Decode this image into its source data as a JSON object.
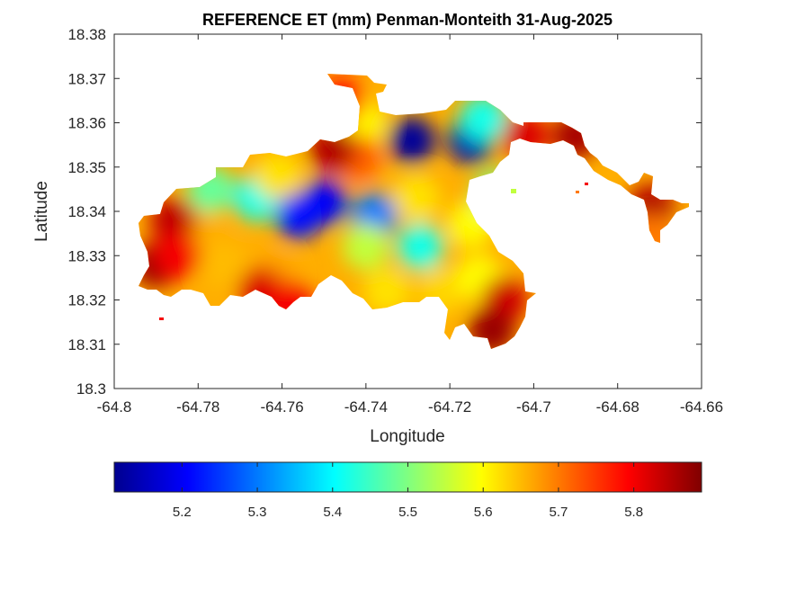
{
  "title": "REFERENCE ET (mm) Penman-Monteith 31-Aug-2025",
  "axes": {
    "xlabel": "Longitude",
    "ylabel": "Latitude",
    "xlim": [
      -64.8,
      -64.66
    ],
    "ylim": [
      18.3,
      18.38
    ],
    "xticks": [
      "-64.8",
      "-64.78",
      "-64.76",
      "-64.74",
      "-64.72",
      "-64.7",
      "-64.68",
      "-64.66"
    ],
    "yticks": [
      "18.3",
      "18.31",
      "18.32",
      "18.33",
      "18.34",
      "18.35",
      "18.36",
      "18.37",
      "18.38"
    ]
  },
  "colorbar": {
    "colormap": "jet",
    "range": [
      5.11,
      5.89
    ],
    "ticks": [
      "5.2",
      "5.3",
      "5.4",
      "5.5",
      "5.6",
      "5.7",
      "5.8"
    ],
    "stops": [
      "#00008f",
      "#0000ff",
      "#0080ff",
      "#00ffff",
      "#80ff80",
      "#ffff00",
      "#ff8000",
      "#ff0000",
      "#800000"
    ]
  },
  "chart_data": {
    "type": "heatmap",
    "title": "REFERENCE ET (mm) Penman-Monteith 31-Aug-2025",
    "xlabel": "Longitude",
    "ylabel": "Latitude",
    "xlim": [
      -64.8,
      -64.66
    ],
    "ylim": [
      18.3,
      18.38
    ],
    "value_range": [
      5.11,
      5.89
    ],
    "grid": false,
    "hotspots": [
      {
        "lon": -64.729,
        "lat": 18.356,
        "value": 5.12
      },
      {
        "lon": -64.715,
        "lat": 18.356,
        "value": 5.14
      },
      {
        "lon": -64.75,
        "lat": 18.342,
        "value": 5.2
      },
      {
        "lon": -64.756,
        "lat": 18.339,
        "value": 5.22
      },
      {
        "lon": -64.738,
        "lat": 18.339,
        "value": 5.3
      },
      {
        "lon": -64.712,
        "lat": 18.361,
        "value": 5.42
      },
      {
        "lon": -64.766,
        "lat": 18.343,
        "value": 5.42
      },
      {
        "lon": -64.727,
        "lat": 18.332,
        "value": 5.42
      },
      {
        "lon": -64.777,
        "lat": 18.345,
        "value": 5.48
      },
      {
        "lon": -64.728,
        "lat": 18.343,
        "value": 5.62
      },
      {
        "lon": -64.78,
        "lat": 18.335,
        "value": 5.66
      },
      {
        "lon": -64.774,
        "lat": 18.328,
        "value": 5.65
      },
      {
        "lon": -64.762,
        "lat": 18.325,
        "value": 5.67
      },
      {
        "lon": -64.74,
        "lat": 18.332,
        "value": 5.55
      },
      {
        "lon": -64.735,
        "lat": 18.322,
        "value": 5.62
      },
      {
        "lon": -64.722,
        "lat": 18.322,
        "value": 5.63
      },
      {
        "lon": -64.713,
        "lat": 18.325,
        "value": 5.6
      },
      {
        "lon": -64.715,
        "lat": 18.337,
        "value": 5.6
      },
      {
        "lon": -64.741,
        "lat": 18.36,
        "value": 5.6
      },
      {
        "lon": -64.742,
        "lat": 18.352,
        "value": 5.72
      },
      {
        "lon": -64.746,
        "lat": 18.365,
        "value": 5.78
      },
      {
        "lon": -64.761,
        "lat": 18.348,
        "value": 5.62
      },
      {
        "lon": -64.786,
        "lat": 18.338,
        "value": 5.84
      },
      {
        "lon": -64.79,
        "lat": 18.328,
        "value": 5.87
      },
      {
        "lon": -64.785,
        "lat": 18.33,
        "value": 5.8
      },
      {
        "lon": -64.765,
        "lat": 18.322,
        "value": 5.82
      },
      {
        "lon": -64.758,
        "lat": 18.319,
        "value": 5.8
      },
      {
        "lon": -64.707,
        "lat": 18.32,
        "value": 5.83
      },
      {
        "lon": -64.71,
        "lat": 18.313,
        "value": 5.87
      },
      {
        "lon": -64.702,
        "lat": 18.357,
        "value": 5.82
      },
      {
        "lon": -64.69,
        "lat": 18.357,
        "value": 5.86
      },
      {
        "lon": -64.672,
        "lat": 18.341,
        "value": 5.85
      },
      {
        "lon": -64.672,
        "lat": 18.334,
        "value": 5.7
      },
      {
        "lon": -64.709,
        "lat": 18.344,
        "value": 5.5
      },
      {
        "lon": -64.748,
        "lat": 18.354,
        "value": 5.85
      }
    ]
  }
}
